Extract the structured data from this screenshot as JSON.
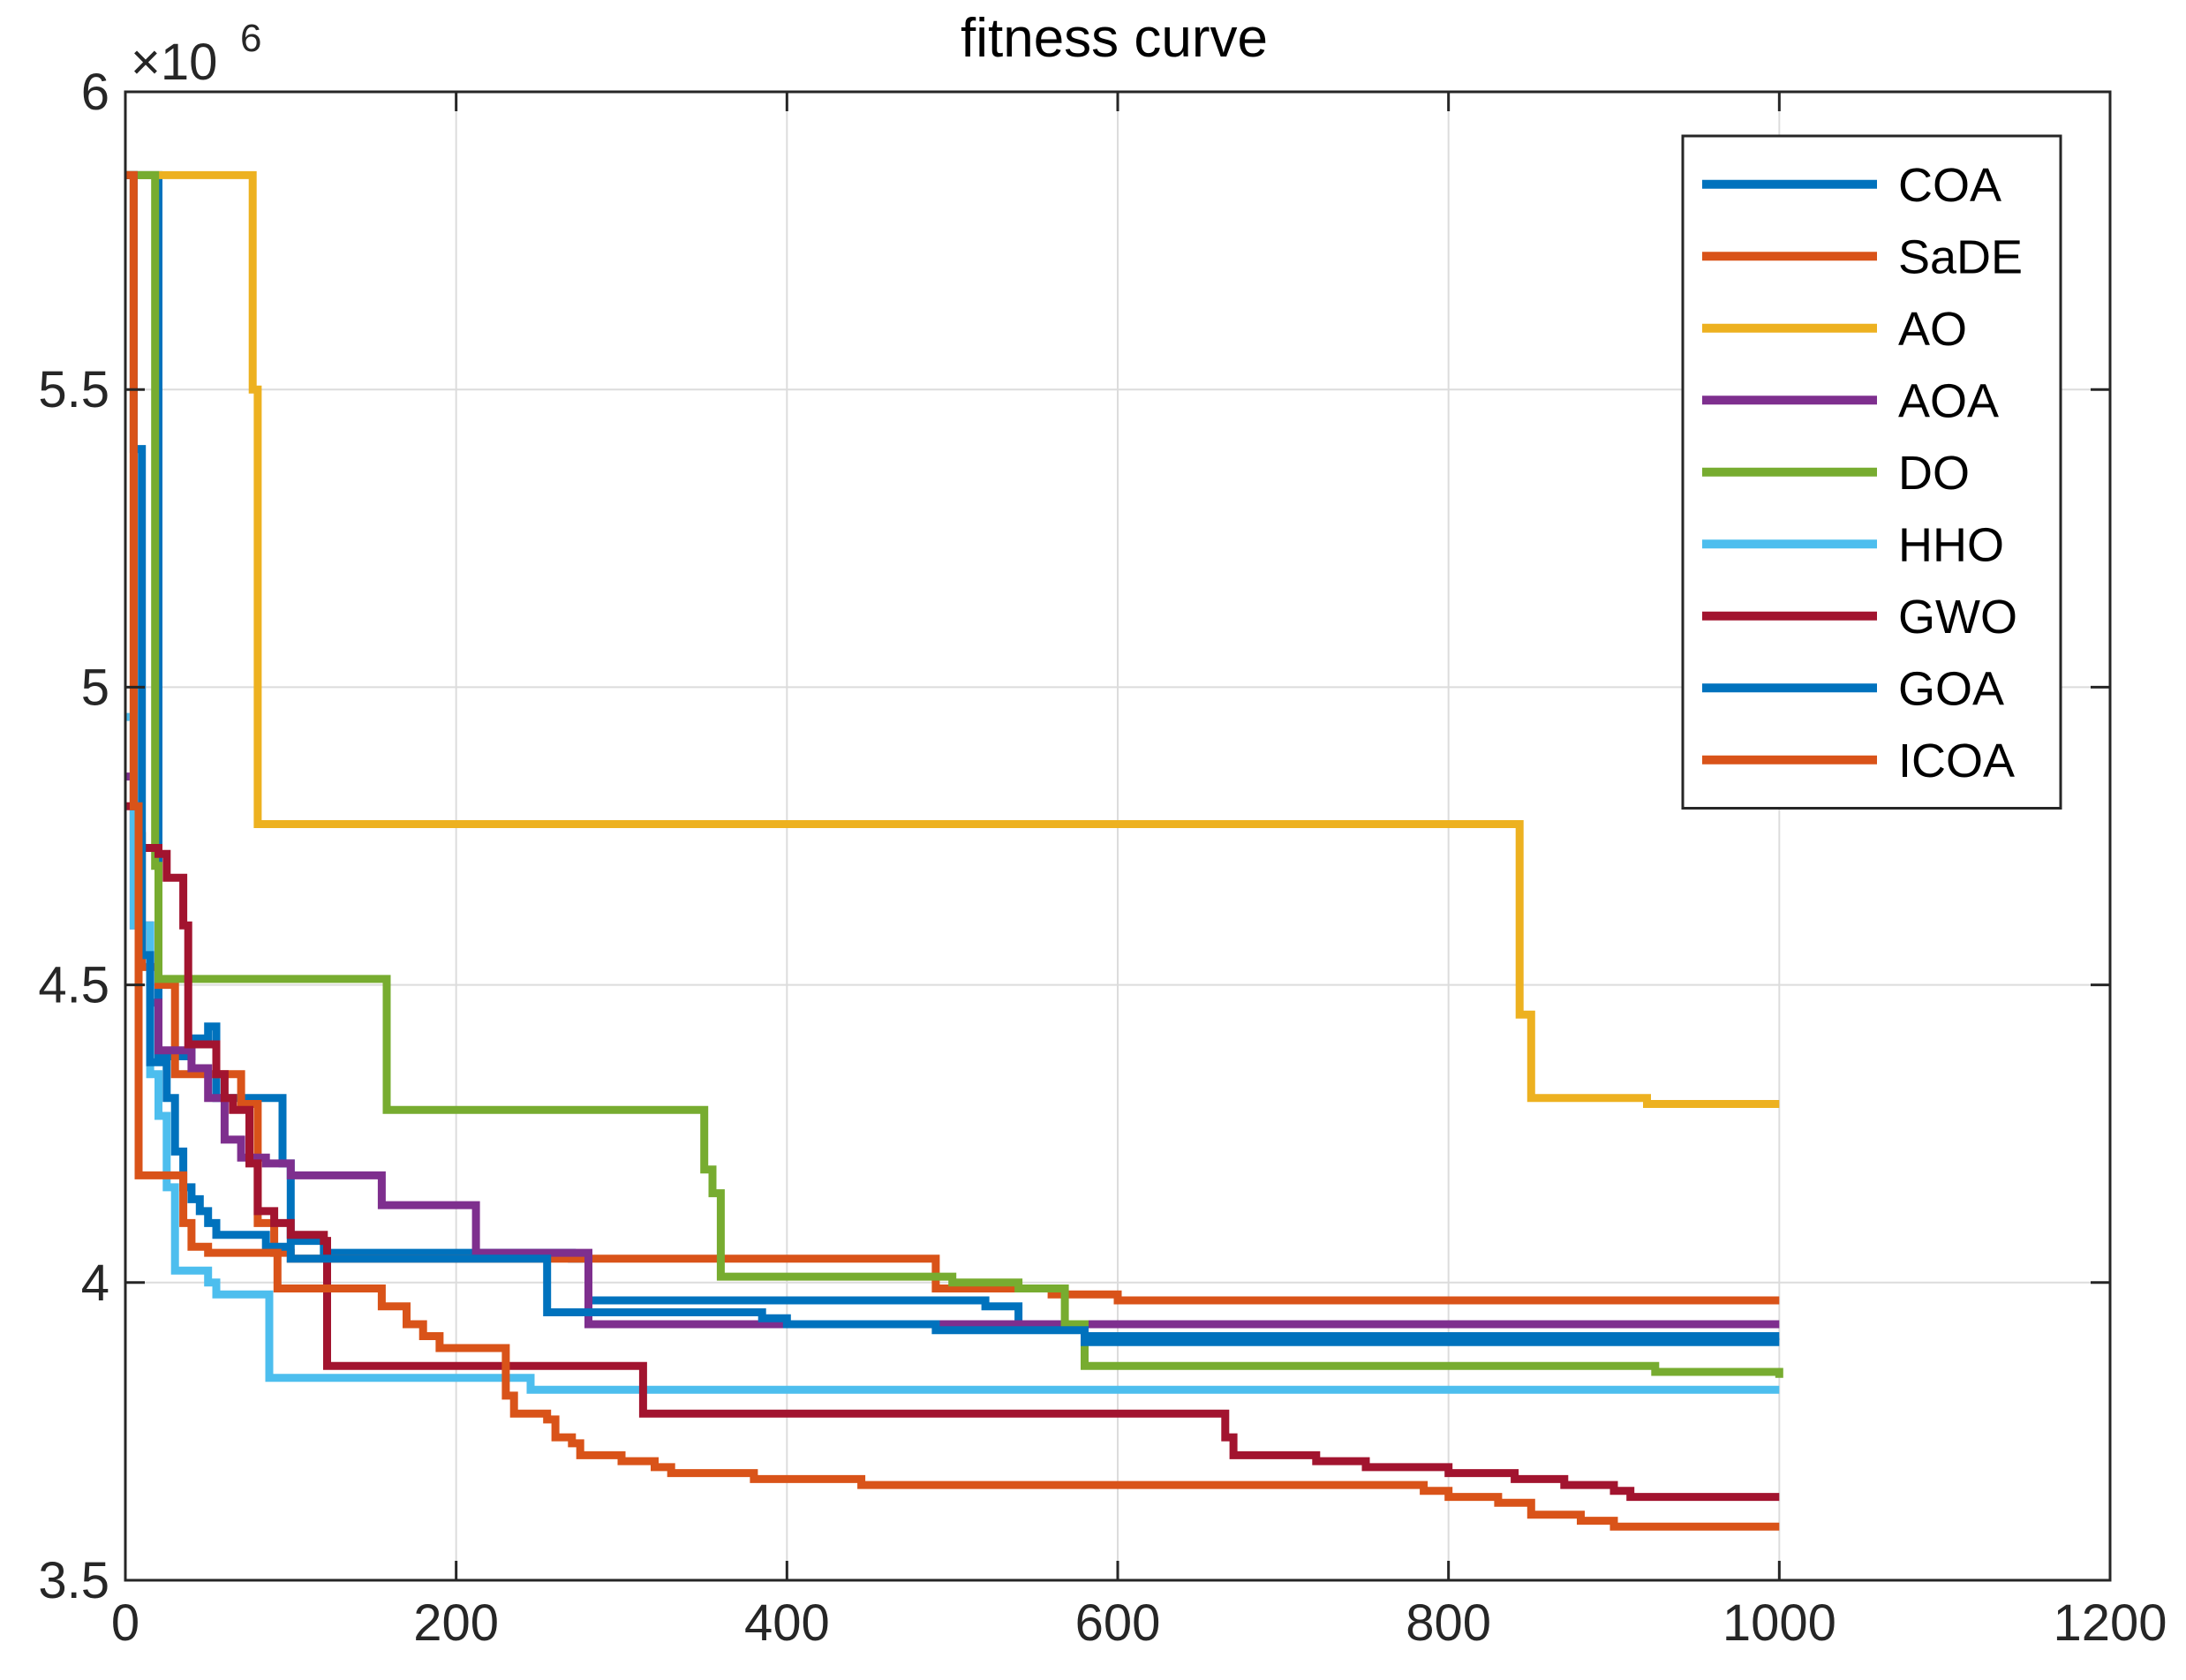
{
  "chart_data": {
    "type": "line",
    "title": "fitness curve",
    "xlabel": "",
    "ylabel": "",
    "xlim": [
      0,
      1200
    ],
    "ylim": [
      3.5,
      6
    ],
    "y_scale_label": "×10",
    "y_scale_exponent": "6",
    "grid": true,
    "legend_position": "top-right",
    "x_ticks": [
      0,
      200,
      400,
      600,
      800,
      1000,
      1200
    ],
    "y_ticks": [
      3.5,
      4,
      4.5,
      5,
      5.5,
      6
    ],
    "x_tick_labels": [
      "0",
      "200",
      "400",
      "600",
      "800",
      "1000",
      "1200"
    ],
    "y_tick_labels": [
      "3.5",
      "4",
      "4.5",
      "5",
      "5.5",
      "6"
    ],
    "series": [
      {
        "name": "COA",
        "color": "#0072BD",
        "steps": [
          [
            0,
            5.86
          ],
          [
            20,
            4.38
          ],
          [
            30,
            4.38
          ],
          [
            40,
            4.41
          ],
          [
            50,
            4.43
          ],
          [
            55,
            4.31
          ],
          [
            90,
            4.31
          ],
          [
            95,
            4.2
          ],
          [
            100,
            4.07
          ],
          [
            120,
            4.05
          ],
          [
            260,
            4.05
          ],
          [
            270,
            4.04
          ],
          [
            280,
            3.97
          ],
          [
            460,
            3.97
          ],
          [
            520,
            3.96
          ],
          [
            540,
            3.93
          ],
          [
            560,
            3.93
          ],
          [
            580,
            3.91
          ],
          [
            1000,
            3.91
          ]
        ]
      },
      {
        "name": "SaDE",
        "color": "#D95319",
        "steps": [
          [
            0,
            5.86
          ],
          [
            5,
            4.75
          ],
          [
            10,
            4.53
          ],
          [
            20,
            4.5
          ],
          [
            30,
            4.35
          ],
          [
            60,
            4.35
          ],
          [
            70,
            4.3
          ],
          [
            80,
            4.1
          ],
          [
            90,
            4.05
          ],
          [
            100,
            4.04
          ],
          [
            150,
            4.04
          ],
          [
            250,
            4.04
          ],
          [
            270,
            4.04
          ],
          [
            480,
            4.04
          ],
          [
            490,
            3.99
          ],
          [
            560,
            3.98
          ],
          [
            600,
            3.97
          ],
          [
            1000,
            3.97
          ]
        ]
      },
      {
        "name": "AO",
        "color": "#EDB120",
        "steps": [
          [
            0,
            5.86
          ],
          [
            75,
            5.86
          ],
          [
            77,
            5.5
          ],
          [
            80,
            4.77
          ],
          [
            840,
            4.77
          ],
          [
            843,
            4.45
          ],
          [
            850,
            4.31
          ],
          [
            910,
            4.31
          ],
          [
            920,
            4.3
          ],
          [
            1000,
            4.3
          ]
        ]
      },
      {
        "name": "AOA",
        "color": "#7E2F8E",
        "steps": [
          [
            0,
            4.85
          ],
          [
            5,
            4.6
          ],
          [
            15,
            4.47
          ],
          [
            20,
            4.39
          ],
          [
            40,
            4.36
          ],
          [
            50,
            4.31
          ],
          [
            60,
            4.24
          ],
          [
            70,
            4.21
          ],
          [
            85,
            4.2
          ],
          [
            100,
            4.18
          ],
          [
            150,
            4.18
          ],
          [
            155,
            4.13
          ],
          [
            210,
            4.13
          ],
          [
            212,
            4.05
          ],
          [
            275,
            4.05
          ],
          [
            280,
            3.93
          ],
          [
            1000,
            3.93
          ]
        ]
      },
      {
        "name": "DO",
        "color": "#77AC30",
        "steps": [
          [
            0,
            5.86
          ],
          [
            15,
            5.86
          ],
          [
            18,
            4.7
          ],
          [
            20,
            4.51
          ],
          [
            155,
            4.51
          ],
          [
            158,
            4.29
          ],
          [
            345,
            4.29
          ],
          [
            350,
            4.19
          ],
          [
            355,
            4.15
          ],
          [
            360,
            4.01
          ],
          [
            490,
            4.01
          ],
          [
            500,
            4.0
          ],
          [
            540,
            3.99
          ],
          [
            565,
            3.99
          ],
          [
            568,
            3.93
          ],
          [
            580,
            3.86
          ],
          [
            920,
            3.86
          ],
          [
            925,
            3.85
          ],
          [
            990,
            3.85
          ],
          [
            1000,
            3.84
          ]
        ]
      },
      {
        "name": "HHO",
        "color": "#4DBEEE",
        "steps": [
          [
            0,
            4.95
          ],
          [
            5,
            4.6
          ],
          [
            15,
            4.35
          ],
          [
            20,
            4.28
          ],
          [
            25,
            4.16
          ],
          [
            30,
            4.02
          ],
          [
            50,
            4.0
          ],
          [
            55,
            3.98
          ],
          [
            85,
            3.98
          ],
          [
            87,
            3.84
          ],
          [
            240,
            3.84
          ],
          [
            245,
            3.82
          ],
          [
            560,
            3.82
          ],
          [
            565,
            3.82
          ],
          [
            1000,
            3.82
          ]
        ]
      },
      {
        "name": "GWO",
        "color": "#A2142F",
        "steps": [
          [
            0,
            4.8
          ],
          [
            8,
            4.73
          ],
          [
            20,
            4.72
          ],
          [
            25,
            4.68
          ],
          [
            35,
            4.6
          ],
          [
            38,
            4.4
          ],
          [
            55,
            4.35
          ],
          [
            60,
            4.31
          ],
          [
            65,
            4.29
          ],
          [
            75,
            4.2
          ],
          [
            80,
            4.12
          ],
          [
            90,
            4.1
          ],
          [
            100,
            4.08
          ],
          [
            120,
            4.07
          ],
          [
            122,
            3.86
          ],
          [
            310,
            3.86
          ],
          [
            313,
            3.78
          ],
          [
            660,
            3.78
          ],
          [
            665,
            3.74
          ],
          [
            670,
            3.71
          ],
          [
            720,
            3.7
          ],
          [
            750,
            3.69
          ],
          [
            800,
            3.68
          ],
          [
            840,
            3.67
          ],
          [
            870,
            3.66
          ],
          [
            900,
            3.65
          ],
          [
            910,
            3.64
          ],
          [
            1000,
            3.64
          ]
        ]
      },
      {
        "name": "GOA",
        "color": "#0072BD",
        "steps": [
          [
            0,
            5.86
          ],
          [
            5,
            5.4
          ],
          [
            10,
            4.55
          ],
          [
            15,
            4.37
          ],
          [
            25,
            4.31
          ],
          [
            30,
            4.22
          ],
          [
            35,
            4.16
          ],
          [
            40,
            4.14
          ],
          [
            45,
            4.12
          ],
          [
            50,
            4.1
          ],
          [
            55,
            4.08
          ],
          [
            80,
            4.08
          ],
          [
            85,
            4.06
          ],
          [
            100,
            4.04
          ],
          [
            230,
            4.04
          ],
          [
            250,
            4.04
          ],
          [
            255,
            3.95
          ],
          [
            380,
            3.95
          ],
          [
            385,
            3.94
          ],
          [
            400,
            3.93
          ],
          [
            480,
            3.93
          ],
          [
            490,
            3.92
          ],
          [
            570,
            3.92
          ],
          [
            580,
            3.9
          ],
          [
            1000,
            3.9
          ]
        ]
      },
      {
        "name": "ICOA",
        "color": "#D95319",
        "steps": [
          [
            0,
            5.86
          ],
          [
            5,
            4.8
          ],
          [
            8,
            4.18
          ],
          [
            30,
            4.18
          ],
          [
            35,
            4.1
          ],
          [
            40,
            4.06
          ],
          [
            50,
            4.05
          ],
          [
            90,
            4.05
          ],
          [
            92,
            3.99
          ],
          [
            150,
            3.99
          ],
          [
            155,
            3.96
          ],
          [
            170,
            3.93
          ],
          [
            180,
            3.91
          ],
          [
            190,
            3.89
          ],
          [
            225,
            3.89
          ],
          [
            230,
            3.81
          ],
          [
            235,
            3.78
          ],
          [
            255,
            3.77
          ],
          [
            260,
            3.74
          ],
          [
            270,
            3.73
          ],
          [
            275,
            3.71
          ],
          [
            300,
            3.7
          ],
          [
            320,
            3.69
          ],
          [
            330,
            3.69
          ],
          [
            330,
            3.68
          ],
          [
            350,
            3.68
          ],
          [
            380,
            3.67
          ],
          [
            440,
            3.67
          ],
          [
            445,
            3.66
          ],
          [
            780,
            3.66
          ],
          [
            785,
            3.65
          ],
          [
            800,
            3.64
          ],
          [
            830,
            3.63
          ],
          [
            850,
            3.61
          ],
          [
            880,
            3.6
          ],
          [
            900,
            3.59
          ],
          [
            930,
            3.59
          ],
          [
            1000,
            3.59
          ]
        ]
      }
    ]
  }
}
